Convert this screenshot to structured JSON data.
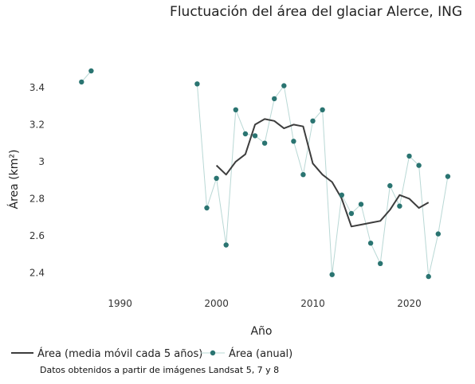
{
  "chart_data": {
    "type": "line",
    "title": "Fluctuación del área del glaciar Alerce, ING",
    "xlabel": "Año",
    "ylabel": "Área (km²)",
    "xlim": [
      1983,
      2025.5
    ],
    "ylim": [
      2.29,
      3.52
    ],
    "x_ticks": [
      1990,
      2000,
      2010,
      2020
    ],
    "y_ticks": [
      2.4,
      2.6,
      2.8,
      3.0,
      3.2,
      3.4
    ],
    "y_tick_labels": [
      "2.4",
      "2.6",
      "2.8",
      "3",
      "3.2",
      "3.4"
    ],
    "grid": false,
    "legend_position": "bottom-left",
    "caption": "Datos obtenidos a partir de imágenes Landsat 5, 7 y 8",
    "series": [
      {
        "name": "Área (media móvil cada 5 años)",
        "style": "line",
        "color": "#3d3d3d",
        "x": [
          2000,
          2001,
          2002,
          2003,
          2004,
          2005,
          2006,
          2007,
          2008,
          2009,
          2010,
          2011,
          2012,
          2013,
          2014,
          2015,
          2016,
          2017,
          2018,
          2019,
          2020,
          2021,
          2022
        ],
        "y": [
          2.98,
          2.93,
          3.0,
          3.04,
          3.2,
          3.23,
          3.22,
          3.18,
          3.2,
          3.19,
          2.99,
          2.93,
          2.89,
          2.8,
          2.65,
          2.66,
          2.67,
          2.68,
          2.74,
          2.82,
          2.8,
          2.75,
          2.78
        ]
      },
      {
        "name": "Área (anual)",
        "style": "line+markers",
        "color": "#2a7471",
        "line_color": "#b9d8d5",
        "segments": [
          {
            "x": [
              1986,
              1987
            ],
            "y": [
              3.43,
              3.49
            ]
          },
          {
            "x": [
              1998,
              1999,
              2000,
              2001,
              2002,
              2003,
              2004,
              2005,
              2006,
              2007,
              2008,
              2009,
              2010,
              2011,
              2012,
              2013,
              2014,
              2015,
              2016,
              2017,
              2018,
              2019,
              2020,
              2021,
              2022,
              2023,
              2024
            ],
            "y": [
              3.42,
              2.75,
              2.91,
              2.55,
              3.28,
              3.15,
              3.14,
              3.1,
              3.34,
              3.41,
              3.11,
              2.93,
              3.22,
              3.28,
              2.39,
              2.82,
              2.72,
              2.77,
              2.56,
              2.45,
              2.87,
              2.76,
              3.03,
              2.98,
              2.38,
              2.61,
              2.92
            ]
          }
        ]
      }
    ]
  }
}
